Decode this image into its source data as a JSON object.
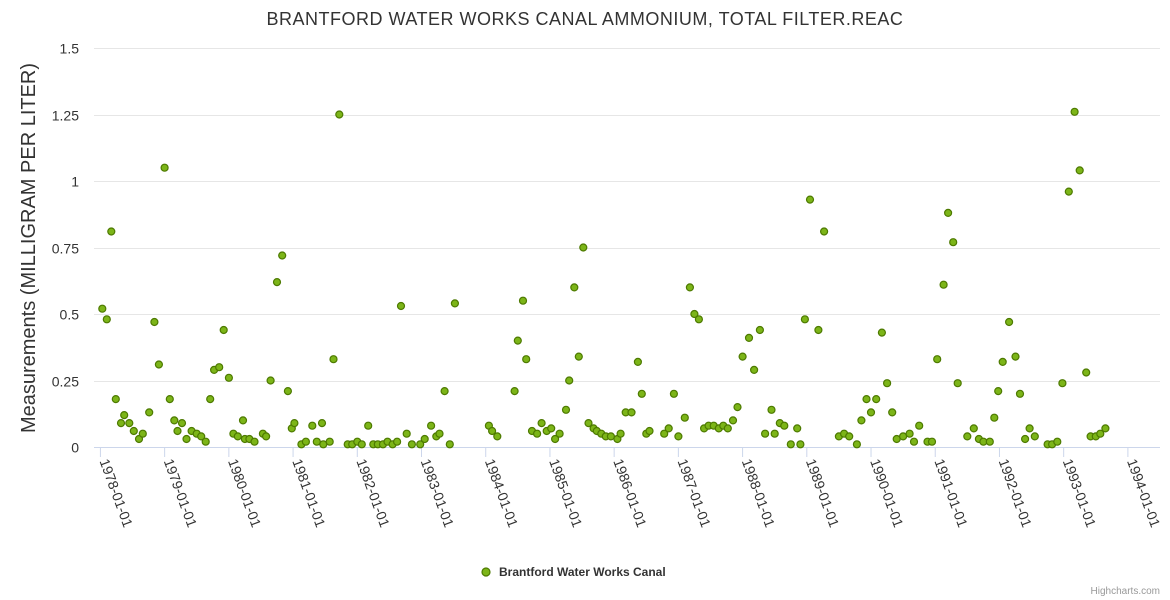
{
  "chart_data": {
    "type": "scatter",
    "title": "BRANTFORD WATER WORKS CANAL AMMONIUM, TOTAL FILTER.REAC",
    "ylabel": "Measurements (MILLIGRAM PER LITER)",
    "xlabel": "",
    "ylim": [
      0,
      1.5
    ],
    "yticks": [
      0,
      0.25,
      0.5,
      0.75,
      1,
      1.25,
      1.5
    ],
    "ytick_labels": [
      "0",
      "0.25",
      "0.5",
      "0.75",
      "1",
      "1.25",
      "1.5"
    ],
    "xlim": [
      1977.9,
      1994.5
    ],
    "xticks": [
      1978,
      1979,
      1980,
      1981,
      1982,
      1983,
      1984,
      1985,
      1986,
      1987,
      1988,
      1989,
      1990,
      1991,
      1992,
      1993,
      1994
    ],
    "xtick_labels": [
      "1978-01-01",
      "1979-01-01",
      "1980-01-01",
      "1981-01-01",
      "1982-01-01",
      "1983-01-01",
      "1984-01-01",
      "1985-01-01",
      "1986-01-01",
      "1987-01-01",
      "1988-01-01",
      "1989-01-01",
      "1990-01-01",
      "1991-01-01",
      "1992-01-01",
      "1993-01-01",
      "1994-01-01"
    ],
    "marker_color": "#7cb518",
    "marker_stroke": "#4d7a00",
    "legend": "Brantford Water Works Canal",
    "credits": "Highcharts.com",
    "series": [
      {
        "name": "Brantford Water Works Canal",
        "points": [
          [
            1978.03,
            0.52
          ],
          [
            1978.1,
            0.48
          ],
          [
            1978.17,
            0.81
          ],
          [
            1978.24,
            0.18
          ],
          [
            1978.32,
            0.09
          ],
          [
            1978.37,
            0.12
          ],
          [
            1978.45,
            0.09
          ],
          [
            1978.52,
            0.06
          ],
          [
            1978.6,
            0.03
          ],
          [
            1978.66,
            0.05
          ],
          [
            1978.76,
            0.13
          ],
          [
            1978.84,
            0.47
          ],
          [
            1978.91,
            0.31
          ],
          [
            1979.0,
            1.05
          ],
          [
            1979.08,
            0.18
          ],
          [
            1979.15,
            0.1
          ],
          [
            1979.2,
            0.06
          ],
          [
            1979.27,
            0.09
          ],
          [
            1979.34,
            0.03
          ],
          [
            1979.42,
            0.06
          ],
          [
            1979.5,
            0.05
          ],
          [
            1979.57,
            0.04
          ],
          [
            1979.64,
            0.02
          ],
          [
            1979.71,
            0.18
          ],
          [
            1979.77,
            0.29
          ],
          [
            1979.85,
            0.3
          ],
          [
            1979.92,
            0.44
          ],
          [
            1980.0,
            0.26
          ],
          [
            1980.07,
            0.05
          ],
          [
            1980.14,
            0.04
          ],
          [
            1980.22,
            0.1
          ],
          [
            1980.25,
            0.03
          ],
          [
            1980.32,
            0.03
          ],
          [
            1980.4,
            0.02
          ],
          [
            1980.53,
            0.05
          ],
          [
            1980.58,
            0.04
          ],
          [
            1980.65,
            0.25
          ],
          [
            1980.75,
            0.62
          ],
          [
            1980.83,
            0.72
          ],
          [
            1980.92,
            0.21
          ],
          [
            1980.98,
            0.07
          ],
          [
            1981.02,
            0.09
          ],
          [
            1981.13,
            0.01
          ],
          [
            1981.2,
            0.02
          ],
          [
            1981.3,
            0.08
          ],
          [
            1981.37,
            0.02
          ],
          [
            1981.45,
            0.09
          ],
          [
            1981.47,
            0.01
          ],
          [
            1981.57,
            0.02
          ],
          [
            1981.63,
            0.33
          ],
          [
            1981.72,
            1.25
          ],
          [
            1981.85,
            0.01
          ],
          [
            1981.92,
            0.01
          ],
          [
            1982.0,
            0.02
          ],
          [
            1982.07,
            0.01
          ],
          [
            1982.17,
            0.08
          ],
          [
            1982.25,
            0.01
          ],
          [
            1982.32,
            0.01
          ],
          [
            1982.4,
            0.01
          ],
          [
            1982.47,
            0.02
          ],
          [
            1982.55,
            0.01
          ],
          [
            1982.62,
            0.02
          ],
          [
            1982.68,
            0.53
          ],
          [
            1982.77,
            0.05
          ],
          [
            1982.85,
            0.01
          ],
          [
            1982.98,
            0.01
          ],
          [
            1983.05,
            0.03
          ],
          [
            1983.15,
            0.08
          ],
          [
            1983.23,
            0.04
          ],
          [
            1983.28,
            0.05
          ],
          [
            1983.36,
            0.21
          ],
          [
            1983.44,
            0.01
          ],
          [
            1983.52,
            0.54
          ],
          [
            1984.05,
            0.08
          ],
          [
            1984.1,
            0.06
          ],
          [
            1984.18,
            0.04
          ],
          [
            1984.45,
            0.21
          ],
          [
            1984.5,
            0.4
          ],
          [
            1984.58,
            0.55
          ],
          [
            1984.63,
            0.33
          ],
          [
            1984.72,
            0.06
          ],
          [
            1984.8,
            0.05
          ],
          [
            1984.87,
            0.09
          ],
          [
            1984.95,
            0.06
          ],
          [
            1985.02,
            0.07
          ],
          [
            1985.08,
            0.03
          ],
          [
            1985.15,
            0.05
          ],
          [
            1985.25,
            0.14
          ],
          [
            1985.3,
            0.25
          ],
          [
            1985.38,
            0.6
          ],
          [
            1985.45,
            0.34
          ],
          [
            1985.52,
            0.75
          ],
          [
            1985.6,
            0.09
          ],
          [
            1985.68,
            0.07
          ],
          [
            1985.73,
            0.06
          ],
          [
            1985.8,
            0.05
          ],
          [
            1985.87,
            0.04
          ],
          [
            1985.95,
            0.04
          ],
          [
            1986.05,
            0.03
          ],
          [
            1986.1,
            0.05
          ],
          [
            1986.18,
            0.13
          ],
          [
            1986.27,
            0.13
          ],
          [
            1986.37,
            0.32
          ],
          [
            1986.43,
            0.2
          ],
          [
            1986.5,
            0.05
          ],
          [
            1986.55,
            0.06
          ],
          [
            1986.78,
            0.05
          ],
          [
            1986.85,
            0.07
          ],
          [
            1986.93,
            0.2
          ],
          [
            1987.0,
            0.04
          ],
          [
            1987.1,
            0.11
          ],
          [
            1987.18,
            0.6
          ],
          [
            1987.25,
            0.5
          ],
          [
            1987.32,
            0.48
          ],
          [
            1987.4,
            0.07
          ],
          [
            1987.47,
            0.08
          ],
          [
            1987.55,
            0.08
          ],
          [
            1987.63,
            0.07
          ],
          [
            1987.7,
            0.08
          ],
          [
            1987.77,
            0.07
          ],
          [
            1987.85,
            0.1
          ],
          [
            1987.92,
            0.15
          ],
          [
            1988.0,
            0.34
          ],
          [
            1988.1,
            0.41
          ],
          [
            1988.18,
            0.29
          ],
          [
            1988.27,
            0.44
          ],
          [
            1988.35,
            0.05
          ],
          [
            1988.45,
            0.14
          ],
          [
            1988.5,
            0.05
          ],
          [
            1988.58,
            0.09
          ],
          [
            1988.65,
            0.08
          ],
          [
            1988.75,
            0.01
          ],
          [
            1988.85,
            0.07
          ],
          [
            1988.9,
            0.01
          ],
          [
            1988.97,
            0.48
          ],
          [
            1989.05,
            0.93
          ],
          [
            1989.18,
            0.44
          ],
          [
            1989.27,
            0.81
          ],
          [
            1989.5,
            0.04
          ],
          [
            1989.58,
            0.05
          ],
          [
            1989.66,
            0.04
          ],
          [
            1989.78,
            0.01
          ],
          [
            1989.85,
            0.1
          ],
          [
            1989.93,
            0.18
          ],
          [
            1990.0,
            0.13
          ],
          [
            1990.08,
            0.18
          ],
          [
            1990.17,
            0.43
          ],
          [
            1990.25,
            0.24
          ],
          [
            1990.33,
            0.13
          ],
          [
            1990.4,
            0.03
          ],
          [
            1990.5,
            0.04
          ],
          [
            1990.6,
            0.05
          ],
          [
            1990.67,
            0.02
          ],
          [
            1990.75,
            0.08
          ],
          [
            1990.88,
            0.02
          ],
          [
            1990.95,
            0.02
          ],
          [
            1991.03,
            0.33
          ],
          [
            1991.13,
            0.61
          ],
          [
            1991.2,
            0.88
          ],
          [
            1991.28,
            0.77
          ],
          [
            1991.35,
            0.24
          ],
          [
            1991.5,
            0.04
          ],
          [
            1991.6,
            0.07
          ],
          [
            1991.68,
            0.03
          ],
          [
            1991.75,
            0.02
          ],
          [
            1991.85,
            0.02
          ],
          [
            1991.92,
            0.11
          ],
          [
            1991.98,
            0.21
          ],
          [
            1992.05,
            0.32
          ],
          [
            1992.15,
            0.47
          ],
          [
            1992.25,
            0.34
          ],
          [
            1992.32,
            0.2
          ],
          [
            1992.4,
            0.03
          ],
          [
            1992.47,
            0.07
          ],
          [
            1992.55,
            0.04
          ],
          [
            1992.75,
            0.01
          ],
          [
            1992.82,
            0.01
          ],
          [
            1992.9,
            0.02
          ],
          [
            1992.98,
            0.24
          ],
          [
            1993.08,
            0.96
          ],
          [
            1993.17,
            1.26
          ],
          [
            1993.25,
            1.04
          ],
          [
            1993.35,
            0.28
          ],
          [
            1993.42,
            0.04
          ],
          [
            1993.5,
            0.04
          ],
          [
            1993.57,
            0.05
          ],
          [
            1993.65,
            0.07
          ]
        ]
      }
    ]
  }
}
